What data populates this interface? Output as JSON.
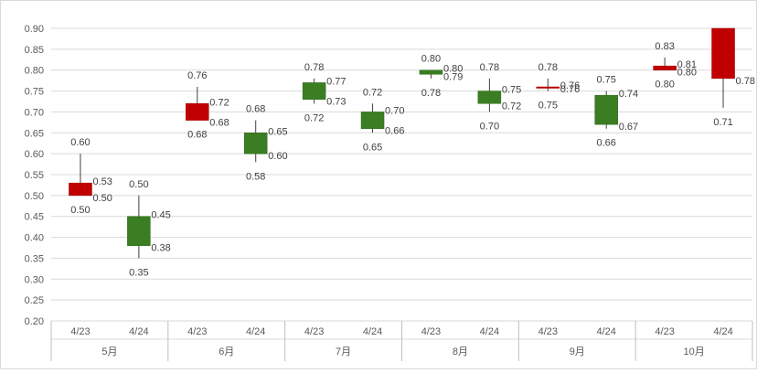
{
  "chart_data": {
    "type": "candlestick",
    "title": "",
    "xlabel": "",
    "ylabel": "",
    "ylim": [
      0.2,
      0.9
    ],
    "y_ticks": [
      "0.20",
      "0.25",
      "0.30",
      "0.35",
      "0.40",
      "0.45",
      "0.50",
      "0.55",
      "0.60",
      "0.65",
      "0.70",
      "0.75",
      "0.80",
      "0.85",
      "0.90"
    ],
    "grid": true,
    "colors": {
      "up": "#c00000",
      "down": "#3a7d22",
      "wick": "#404040",
      "grid": "#d9d9d9",
      "axis": "#bfbfbf"
    },
    "groups": [
      "5月",
      "6月",
      "7月",
      "8月",
      "9月",
      "10月"
    ],
    "points": [
      {
        "group": "5月",
        "date": "4/23",
        "open": 0.5,
        "high": 0.6,
        "low": 0.5,
        "close": 0.53,
        "labels": {
          "open": "0.50",
          "high": "0.60",
          "low": "0.50",
          "close": "0.53"
        }
      },
      {
        "group": "5月",
        "date": "4/24",
        "open": 0.45,
        "high": 0.5,
        "low": 0.35,
        "close": 0.38,
        "labels": {
          "open": "0.45",
          "high": "0.50",
          "low": "0.35",
          "close": "0.38"
        }
      },
      {
        "group": "6月",
        "date": "4/23",
        "open": 0.68,
        "high": 0.76,
        "low": 0.68,
        "close": 0.72,
        "labels": {
          "open": "0.68",
          "high": "0.76",
          "low": "0.68",
          "close": "0.72"
        }
      },
      {
        "group": "6月",
        "date": "4/24",
        "open": 0.65,
        "high": 0.68,
        "low": 0.58,
        "close": 0.6,
        "labels": {
          "open": "0.65",
          "high": "0.68",
          "low": "0.58",
          "close": "0.60"
        }
      },
      {
        "group": "7月",
        "date": "4/23",
        "open": 0.77,
        "high": 0.78,
        "low": 0.72,
        "close": 0.73,
        "labels": {
          "open": "0.77",
          "high": "0.78",
          "low": "0.72",
          "close": "0.73"
        }
      },
      {
        "group": "7月",
        "date": "4/24",
        "open": 0.7,
        "high": 0.72,
        "low": 0.65,
        "close": 0.66,
        "labels": {
          "open": "0.70",
          "high": "0.72",
          "low": "0.65",
          "close": "0.66"
        }
      },
      {
        "group": "8月",
        "date": "4/23",
        "open": 0.8,
        "high": 0.8,
        "low": 0.78,
        "close": 0.79,
        "labels": {
          "open": "0.80",
          "high": "0.80",
          "low": "0.78",
          "close": "0.79"
        }
      },
      {
        "group": "8月",
        "date": "4/24",
        "open": 0.75,
        "high": 0.78,
        "low": 0.7,
        "close": 0.72,
        "labels": {
          "open": "0.75",
          "high": "0.78",
          "low": "0.70",
          "close": "0.72"
        }
      },
      {
        "group": "9月",
        "date": "4/23",
        "open": 0.76,
        "high": 0.78,
        "low": 0.75,
        "close": 0.76,
        "labels": {
          "open": "0.76",
          "high": "0.78",
          "low": "0.75",
          "close": "0.76"
        }
      },
      {
        "group": "9月",
        "date": "4/24",
        "open": 0.74,
        "high": 0.75,
        "low": 0.66,
        "close": 0.67,
        "labels": {
          "open": "0.74",
          "high": "0.75",
          "low": "0.66",
          "close": "0.67"
        }
      },
      {
        "group": "10月",
        "date": "4/23",
        "open": 0.8,
        "high": 0.83,
        "low": 0.8,
        "close": 0.81,
        "labels": {
          "open": "0.80",
          "high": "0.83",
          "low": "0.80",
          "close": "0.81"
        }
      },
      {
        "group": "10月",
        "date": "4/24",
        "open": 0.78,
        "high": 0.9,
        "low": 0.71,
        "close": 0.9,
        "labels": {
          "open": "0.78",
          "high": "",
          "low": "0.71",
          "close": ""
        }
      }
    ]
  }
}
